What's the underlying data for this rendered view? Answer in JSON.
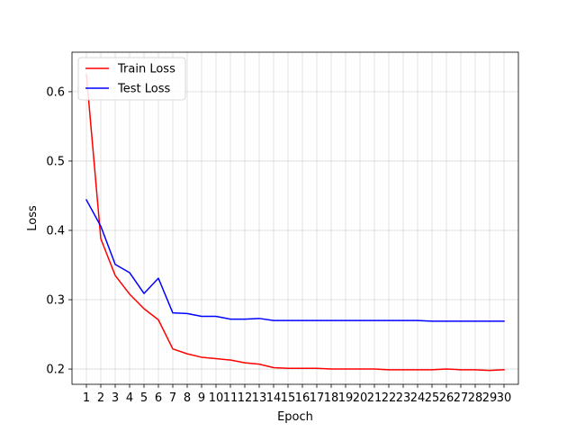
{
  "chart_data": {
    "type": "line",
    "title": "",
    "xlabel": "Epoch",
    "ylabel": "Loss",
    "x": [
      1,
      2,
      3,
      4,
      5,
      6,
      7,
      8,
      9,
      10,
      11,
      12,
      13,
      14,
      15,
      16,
      17,
      18,
      19,
      20,
      21,
      22,
      23,
      24,
      25,
      26,
      27,
      28,
      29,
      30
    ],
    "xticks": [
      "1",
      "2",
      "3",
      "4",
      "5",
      "6",
      "7",
      "8",
      "9",
      "10",
      "11",
      "12",
      "13",
      "14",
      "15",
      "16",
      "17",
      "18",
      "19",
      "20",
      "21",
      "22",
      "23",
      "24",
      "25",
      "26",
      "27",
      "28",
      "29",
      "30"
    ],
    "yticks": [
      "0.2",
      "0.3",
      "0.4",
      "0.5",
      "0.6"
    ],
    "ylim": [
      0.178,
      0.657
    ],
    "xlim": [
      0.0,
      31.0
    ],
    "grid": true,
    "legend_position": "top-left",
    "series": [
      {
        "name": "Train Loss",
        "color": "#ff0000",
        "values": [
          0.625,
          0.388,
          0.335,
          0.308,
          0.287,
          0.271,
          0.229,
          0.222,
          0.217,
          0.215,
          0.213,
          0.209,
          0.207,
          0.202,
          0.201,
          0.201,
          0.201,
          0.2,
          0.2,
          0.2,
          0.2,
          0.199,
          0.199,
          0.199,
          0.199,
          0.2,
          0.199,
          0.199,
          0.198,
          0.199
        ]
      },
      {
        "name": "Test Loss",
        "color": "#0000ff",
        "values": [
          0.444,
          0.406,
          0.351,
          0.339,
          0.309,
          0.331,
          0.281,
          0.28,
          0.276,
          0.276,
          0.272,
          0.272,
          0.273,
          0.27,
          0.27,
          0.27,
          0.27,
          0.27,
          0.27,
          0.27,
          0.27,
          0.27,
          0.27,
          0.27,
          0.269,
          0.269,
          0.269,
          0.269,
          0.269,
          0.269
        ]
      }
    ]
  }
}
